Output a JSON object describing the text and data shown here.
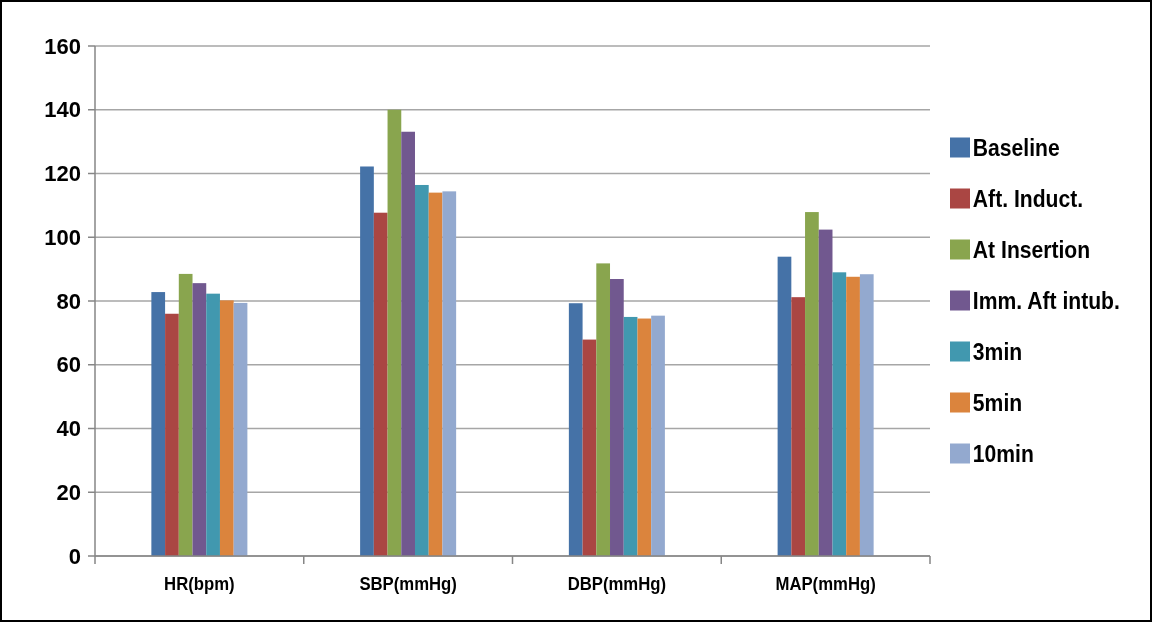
{
  "chart_data": {
    "type": "bar",
    "categories": [
      "HR(bpm)",
      "SBP(mmHg)",
      "DBP(mmHg)",
      "MAP(mmHg)"
    ],
    "series": [
      {
        "name": "Baseline",
        "color": "#4572a7",
        "values": [
          82.8,
          122.2,
          79.3,
          93.9
        ]
      },
      {
        "name": "Aft. Induct.",
        "color": "#aa4643",
        "values": [
          76,
          107.7,
          67.9,
          81.2
        ]
      },
      {
        "name": "At Insertion",
        "color": "#89a54e",
        "values": [
          88.5,
          140,
          91.8,
          107.9
        ]
      },
      {
        "name": "Imm. Aft intub.",
        "color": "#71588f",
        "values": [
          85.6,
          133.1,
          86.9,
          102.4
        ]
      },
      {
        "name": "3min",
        "color": "#4198af",
        "values": [
          82.3,
          116.4,
          75,
          89
        ]
      },
      {
        "name": "5min",
        "color": "#db843d",
        "values": [
          80.2,
          114,
          74.5,
          87.6
        ]
      },
      {
        "name": "10min",
        "color": "#93a9cf",
        "values": [
          79.4,
          114.4,
          75.4,
          88.4
        ]
      }
    ],
    "ylim": [
      0,
      160
    ],
    "yticks": [
      0,
      20,
      40,
      60,
      80,
      100,
      120,
      140,
      160
    ],
    "grid": "y",
    "legend": "right"
  }
}
